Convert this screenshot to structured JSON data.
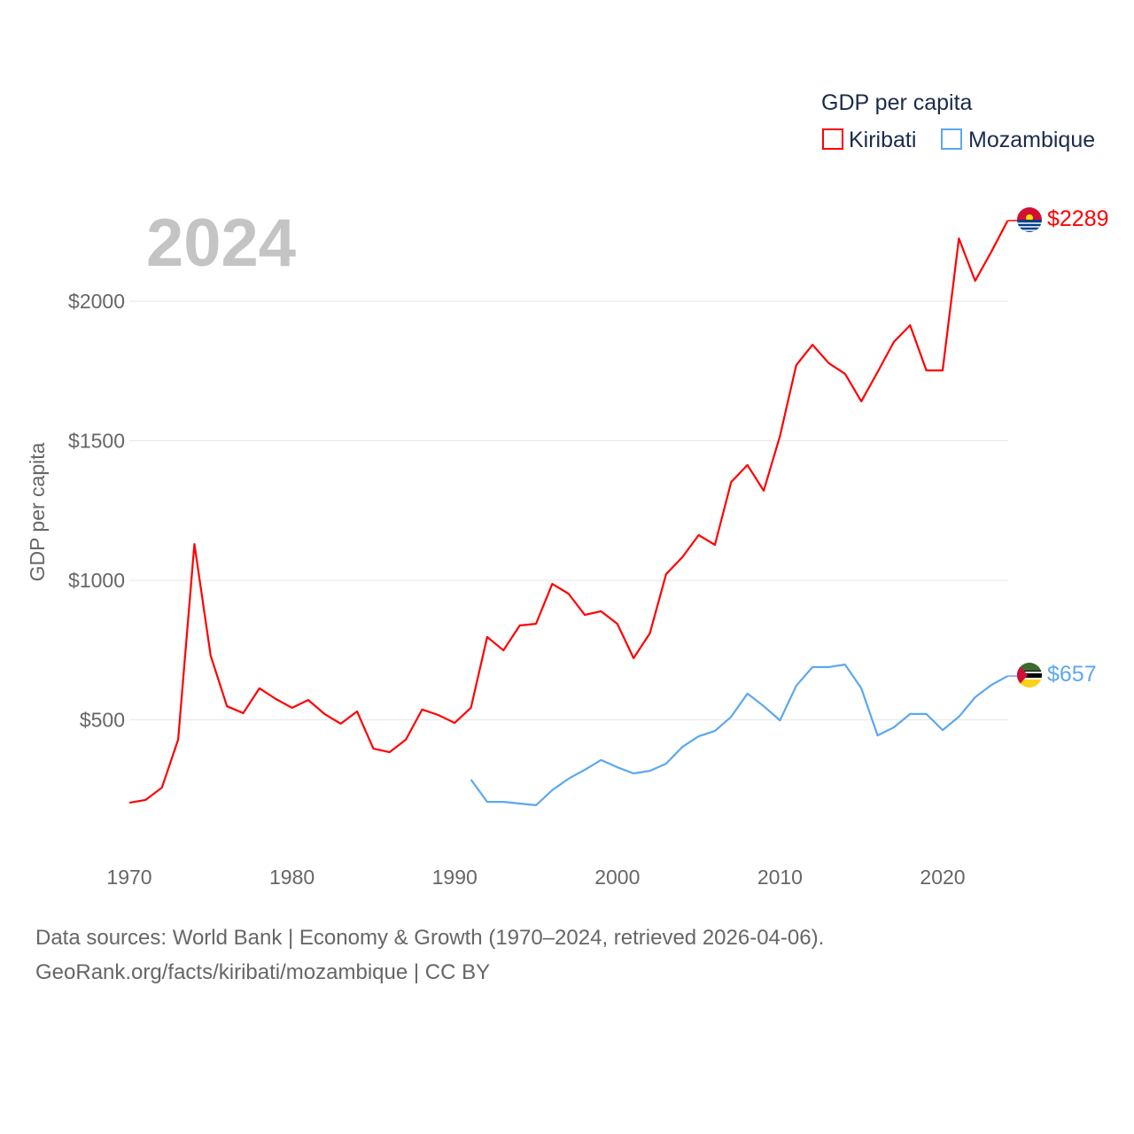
{
  "chart_data": {
    "type": "line",
    "year_label": "2024",
    "ylabel": "GDP per capita",
    "legend_title": "GDP per capita",
    "legend_position": "top-right",
    "ylim": [
      0,
      2400
    ],
    "xlim": [
      1970,
      2024
    ],
    "yticks": [
      500,
      1000,
      1500,
      2000
    ],
    "ytick_labels": [
      "$500",
      "$1000",
      "$1500",
      "$2000"
    ],
    "xticks": [
      1970,
      1980,
      1990,
      2000,
      2010,
      2020
    ],
    "xtick_labels": [
      "1970",
      "1980",
      "1990",
      "2000",
      "2010",
      "2020"
    ],
    "grid": true,
    "series": [
      {
        "name": "Kiribati",
        "color": "#ff0000",
        "end_label": "$2289",
        "start_year": 1970,
        "values": [
          203,
          213,
          257,
          429,
          1130,
          730,
          549,
          524,
          613,
          575,
          543,
          571,
          521,
          486,
          530,
          397,
          384,
          429,
          537,
          517,
          489,
          543,
          797,
          749,
          838,
          844,
          987,
          952,
          876,
          889,
          844,
          721,
          810,
          1022,
          1083,
          1162,
          1127,
          1352,
          1413,
          1321,
          1517,
          1771,
          1844,
          1778,
          1740,
          1641,
          1746,
          1854,
          1914,
          1752,
          1752,
          2225,
          2073,
          2178,
          2289
        ]
      },
      {
        "name": "Mozambique",
        "color": "#5ba8ee",
        "end_label": "$657",
        "start_year": 1991,
        "values": [
          286,
          206,
          206,
          200,
          194,
          248,
          289,
          321,
          356,
          330,
          308,
          317,
          343,
          403,
          441,
          460,
          511,
          594,
          549,
          498,
          622,
          689,
          689,
          698,
          613,
          444,
          473,
          521,
          521,
          463,
          511,
          581,
          625,
          657
        ]
      }
    ]
  },
  "footer": {
    "line1": "Data sources: World Bank | Economy & Growth (1970–2024, retrieved 2026-04-06).",
    "line2": "GeoRank.org/facts/kiribati/mozambique | CC BY"
  }
}
